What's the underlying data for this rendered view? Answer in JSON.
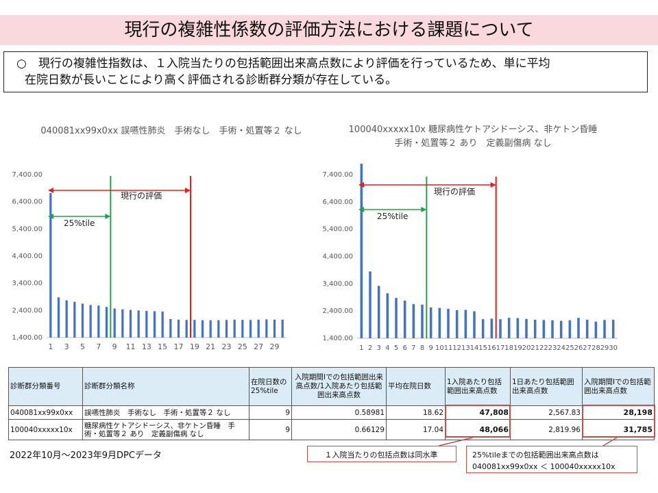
{
  "title": "現行の複雑性係数の評価方法における課題について",
  "note": {
    "line1": "○　現行の複雑性指数は、１入院当たりの包括範囲出来高点数により評価を行っているため、単に平均",
    "line2": "在院日数が長いことにより高く評価される診断群分類が存在している。"
  },
  "chart_data": [
    {
      "type": "bar",
      "title": "040081xx99x0xx 誤嚥性肺炎　手術なし　手術・処置等２ なし",
      "x": [
        1,
        2,
        3,
        4,
        5,
        6,
        7,
        8,
        9,
        10,
        11,
        12,
        13,
        14,
        15,
        16,
        17,
        18,
        19,
        20,
        21,
        22,
        23,
        24,
        25,
        26,
        27,
        28,
        29,
        30
      ],
      "x_tick_labels": [
        "1",
        "3",
        "5",
        "7",
        "9",
        "11",
        "13",
        "15",
        "17",
        "19",
        "21",
        "23",
        "25",
        "27",
        "29"
      ],
      "values": [
        6720,
        2880,
        2770,
        2720,
        2650,
        2600,
        2580,
        2530,
        2470,
        2440,
        2420,
        2400,
        2380,
        2370,
        2360,
        2080,
        2060,
        2050,
        2050,
        2040,
        2040,
        2040,
        2050,
        2060,
        2050,
        2050,
        2060,
        2070,
        2060,
        2060
      ],
      "ylim": [
        1400,
        7400
      ],
      "y_tick_labels": [
        "1,400.00",
        "2,400.00",
        "3,400.00",
        "4,400.00",
        "5,400.00",
        "6,400.00",
        "7,400.00"
      ],
      "color": "#4472c4",
      "markers": [
        {
          "label": "25%tile",
          "from_x": 1,
          "to_x": 9,
          "color": "#22a34b"
        },
        {
          "label": "現行の評価",
          "from_x": 1,
          "to_x": 19,
          "color": "#e02020"
        }
      ]
    },
    {
      "type": "bar",
      "title_line1": "100040xxxxx10x 糖尿病性ケトアシドーシス、非ケトン昏睡",
      "title_line2": "手術・処置等２ あり　定義副傷病 なし",
      "x": [
        1,
        2,
        3,
        4,
        5,
        6,
        7,
        8,
        9,
        10,
        11,
        12,
        13,
        14,
        15,
        16,
        17,
        18,
        19,
        20,
        21,
        22,
        23,
        24,
        25,
        26,
        27,
        28,
        29,
        30
      ],
      "x_tick_labels": [
        "1",
        "2",
        "3",
        "4",
        "5",
        "6",
        "7",
        "8",
        "9",
        "10",
        "11",
        "12",
        "13",
        "14",
        "15",
        "16",
        "17",
        "18",
        "19",
        "20",
        "21",
        "22",
        "23",
        "24",
        "25",
        "26",
        "27",
        "28",
        "29",
        "30"
      ],
      "values": [
        7800,
        3850,
        3320,
        3050,
        2880,
        2780,
        2650,
        2630,
        2530,
        2510,
        2480,
        2430,
        2440,
        2390,
        2100,
        2120,
        2100,
        2150,
        2140,
        2110,
        2080,
        2070,
        2060,
        2040,
        2060,
        2150,
        2080,
        2010,
        2070,
        2080
      ],
      "ylim": [
        1400,
        7400
      ],
      "y_tick_labels": [
        "1,400.00",
        "2,400.00",
        "3,400.00",
        "4,400.00",
        "5,400.00",
        "6,400.00",
        "7,400.00"
      ],
      "color": "#4472c4",
      "markers": [
        {
          "label": "25%tile",
          "from_x": 1,
          "to_x": 9,
          "color": "#22a34b"
        },
        {
          "label": "現行の評価",
          "from_x": 1,
          "to_x": 17,
          "color": "#e02020"
        }
      ]
    }
  ],
  "table": {
    "headers": [
      "診断群分類番号",
      "診断群分類名称",
      "在院日数の25%tile",
      "入院期間Ⅰでの包括範囲出来高点数/1入院あたり包括範囲出来高点数",
      "平均在院日数",
      "1入院あたり包括範囲出来高点数",
      "1日あたり包括範囲出来高点数",
      "入院期間Ⅰでの包括範囲出来高点数"
    ],
    "rows": [
      [
        "040081xx99x0xx",
        "誤嚥性肺炎　手術なし　手術・処置等２ なし",
        "9",
        "0.58981",
        "18.62",
        "47,808",
        "2,567.83",
        "28,198"
      ],
      [
        "100040xxxxx10x",
        "糖尿病性ケトアシドーシス、非ケトン昏睡　手術・処置等２ あり　定義副傷病 なし",
        "9",
        "0.66129",
        "17.04",
        "48,066",
        "2,819.96",
        "31,785"
      ]
    ]
  },
  "source": "2022年10月～2023年9月DPCデータ",
  "callouts": {
    "left": "１入院当たりの包括点数は同水準",
    "right_line1": "25%tileまでの包括範囲出来高点数は",
    "right_line2": "040081xx99x0xx ＜ 100040xxxxx10x"
  }
}
